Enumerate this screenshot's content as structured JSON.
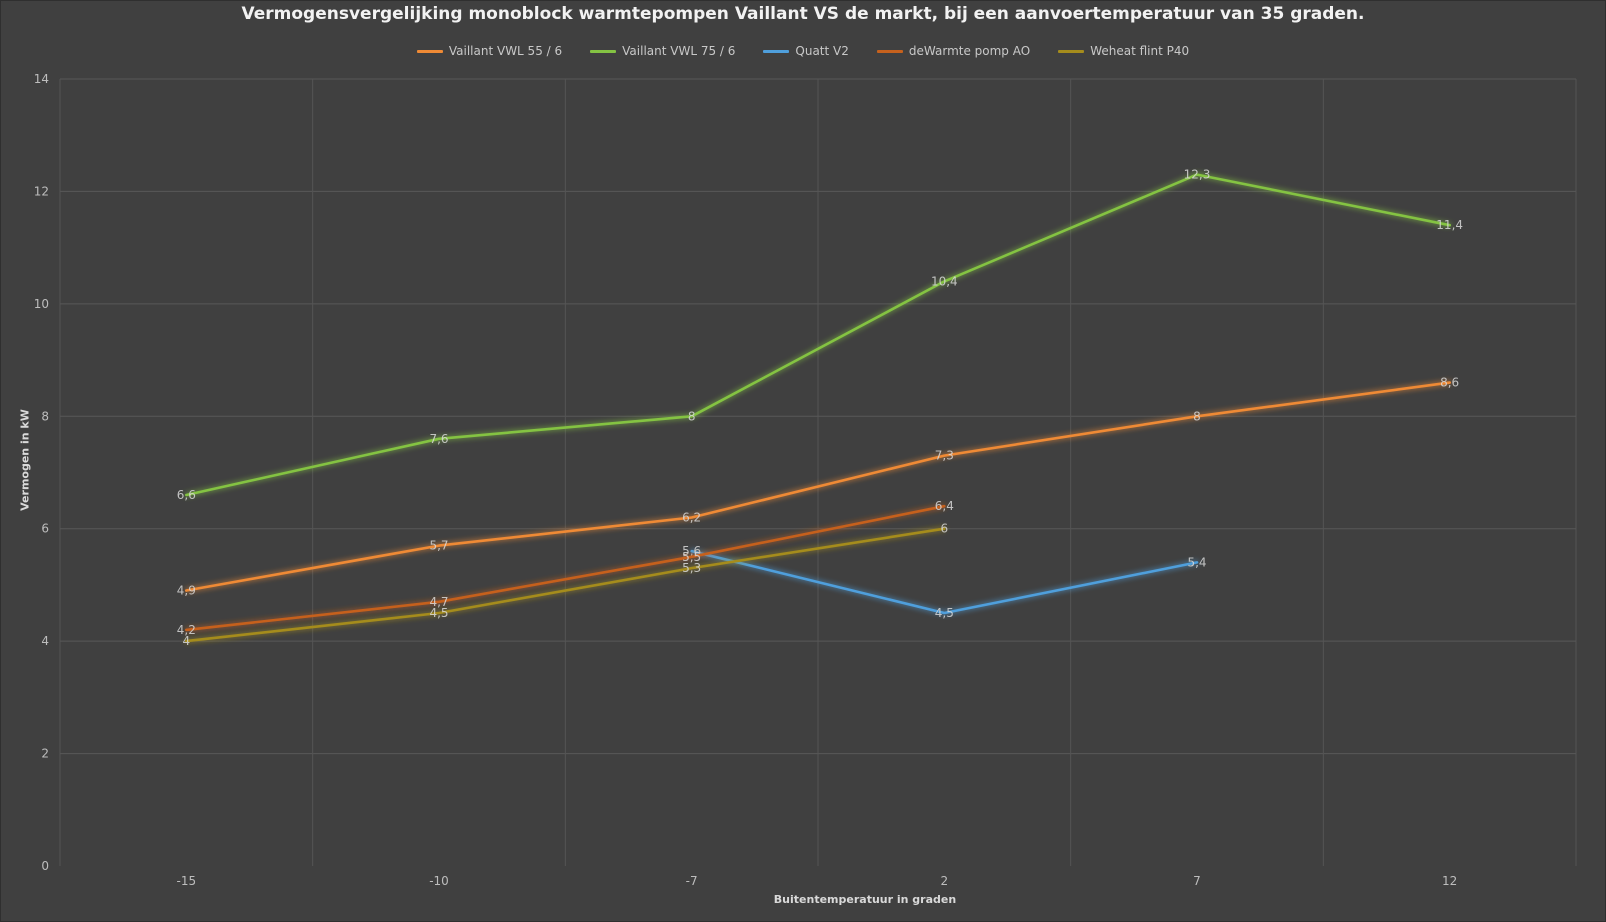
{
  "chart_data": {
    "type": "line",
    "title": "Vermogensvergelijking monoblock warmtepompen Vaillant VS de markt, bij een aanvoertemperatuur van 35 graden.",
    "xlabel": "Buitentemperatuur in graden",
    "ylabel": "Vermogen in kW",
    "categories": [
      "-15",
      "-10",
      "-7",
      "2",
      "7",
      "12"
    ],
    "ylim": [
      0,
      14
    ],
    "yticks": [
      0,
      2,
      4,
      6,
      8,
      10,
      12,
      14
    ],
    "grid": true,
    "legend_position": "top",
    "background": "#404040",
    "series": [
      {
        "name": "Vaillant VWL 55 / 6",
        "color": "#ef8a35",
        "values": [
          4.9,
          5.7,
          6.2,
          7.3,
          8,
          8.6
        ]
      },
      {
        "name": "Vaillant VWL 75 / 6",
        "color": "#84c343",
        "values": [
          6.6,
          7.6,
          8,
          10.4,
          12.3,
          11.4
        ]
      },
      {
        "name": "Quatt V2",
        "color": "#4f9fdc",
        "values": [
          null,
          null,
          5.6,
          4.5,
          5.4,
          null
        ]
      },
      {
        "name": "deWarmte pomp AO",
        "color": "#c6611d",
        "values": [
          4.2,
          4.7,
          5.5,
          6.4,
          null,
          null
        ]
      },
      {
        "name": "Weheat flint P40",
        "color": "#a58c1c",
        "values": [
          4,
          4.5,
          5.3,
          6,
          null,
          null
        ]
      }
    ]
  }
}
